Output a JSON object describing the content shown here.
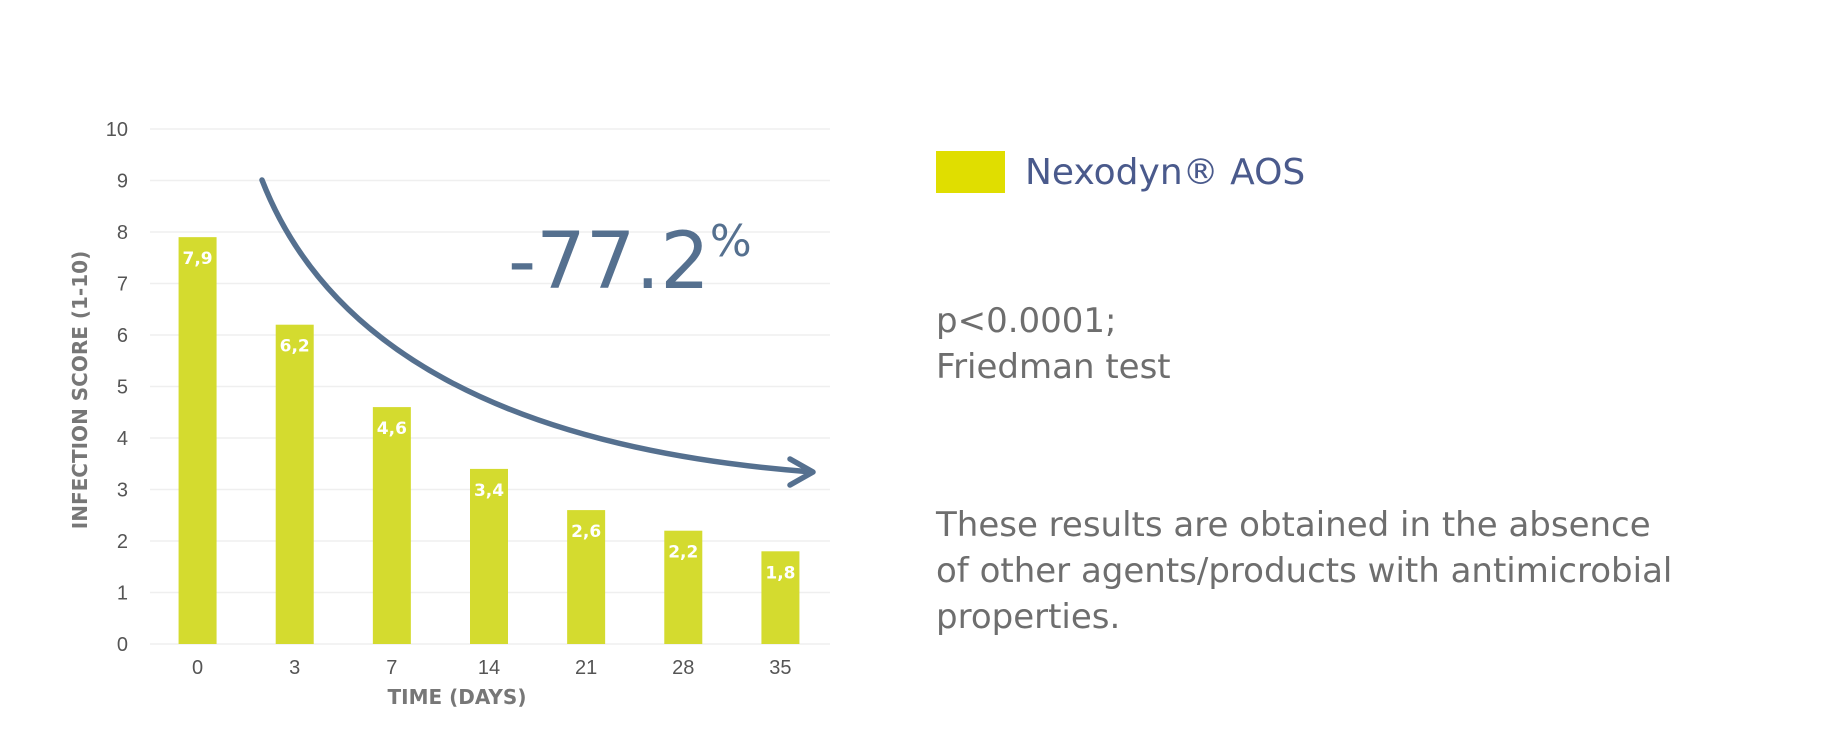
{
  "chart_data": {
    "type": "bar",
    "categories": [
      "0",
      "3",
      "7",
      "14",
      "21",
      "28",
      "35"
    ],
    "values": [
      7.9,
      6.2,
      4.6,
      3.4,
      2.6,
      2.2,
      1.8
    ],
    "value_labels": [
      "7,9",
      "6,2",
      "4,6",
      "3,4",
      "2,6",
      "2,2",
      "1,8"
    ],
    "xlabel": "TIME (DAYS)",
    "ylabel": "INFECTION SCORE (1-10)",
    "ylim": [
      0,
      10
    ],
    "yticks": [
      "0",
      "1",
      "2",
      "3",
      "4",
      "5",
      "6",
      "7",
      "8",
      "9",
      "10"
    ],
    "grid": true,
    "bar_color": "#d4db2f",
    "annotation": {
      "text_main": "-77.2",
      "text_suffix": "%",
      "arrow_color": "#55708f"
    }
  },
  "legend": {
    "label": "Nexodyn® AOS",
    "color": "#e0de00",
    "position": "right"
  },
  "stats": {
    "line1": "p<0.0001;",
    "line2": "Friedman test"
  },
  "note": {
    "line1": "These results are obtained in the absence",
    "line2": "of other agents/products with antimicrobial",
    "line3": "properties."
  }
}
